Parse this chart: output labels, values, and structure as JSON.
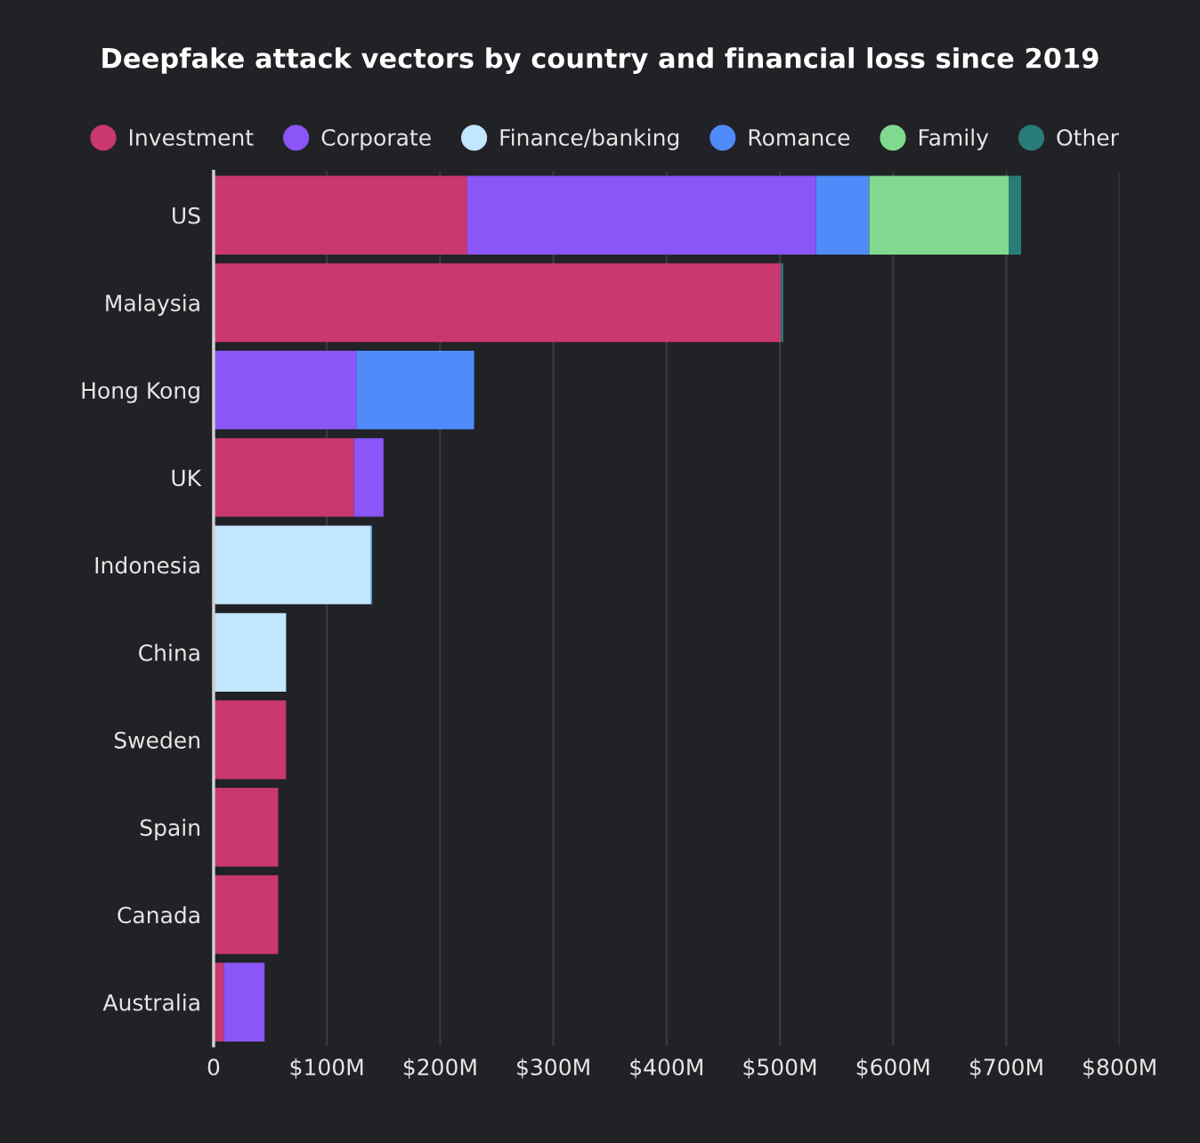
{
  "chart_data": {
    "type": "bar",
    "orientation": "horizontal",
    "stacked": true,
    "title": "Deepfake attack vectors by country and financial loss since 2019",
    "categories": [
      "US",
      "Malaysia",
      "Hong Kong",
      "UK",
      "Indonesia",
      "China",
      "Sweden",
      "Spain",
      "Canada",
      "Australia"
    ],
    "series": [
      {
        "name": "Investment",
        "color": "#c9386f",
        "values": [
          224,
          501,
          0,
          124,
          null,
          0,
          64,
          57,
          57,
          9
        ]
      },
      {
        "name": "Corporate",
        "color": "#8b55f7",
        "values": [
          308,
          0,
          126,
          26,
          0,
          1,
          0,
          0,
          0,
          36
        ]
      },
      {
        "name": "Finance/banking",
        "color": "#c2e6fe",
        "values": [
          0,
          0,
          0,
          0,
          139,
          63,
          0,
          0,
          0,
          0
        ]
      },
      {
        "name": "Romance",
        "color": "#4f8bf9",
        "values": [
          47,
          0,
          104,
          0,
          1,
          0,
          0,
          0,
          0,
          0
        ]
      },
      {
        "name": "Family",
        "color": "#80d98e",
        "values": [
          123,
          0,
          0,
          0,
          0,
          0,
          0,
          0,
          0,
          0
        ]
      },
      {
        "name": "Other",
        "color": "#2a7c79",
        "values": [
          11,
          2,
          0,
          0,
          0,
          null,
          0,
          0,
          null,
          0
        ]
      }
    ],
    "xlim": [
      0,
      800
    ],
    "xticks": [
      0,
      {
        "value": 100,
        "label": "$100M"
      },
      {
        "value": 200,
        "label": "$200M"
      },
      {
        "value": 300,
        "label": "$300M"
      },
      {
        "value": 400,
        "label": "$400M"
      },
      {
        "value": 500,
        "label": "$500M"
      },
      {
        "value": 600,
        "label": "$600M"
      },
      {
        "value": 700,
        "label": "$700M"
      },
      {
        "value": 800,
        "label": "$800M"
      }
    ],
    "grid": "x",
    "legend": "top",
    "marker": "circle"
  }
}
